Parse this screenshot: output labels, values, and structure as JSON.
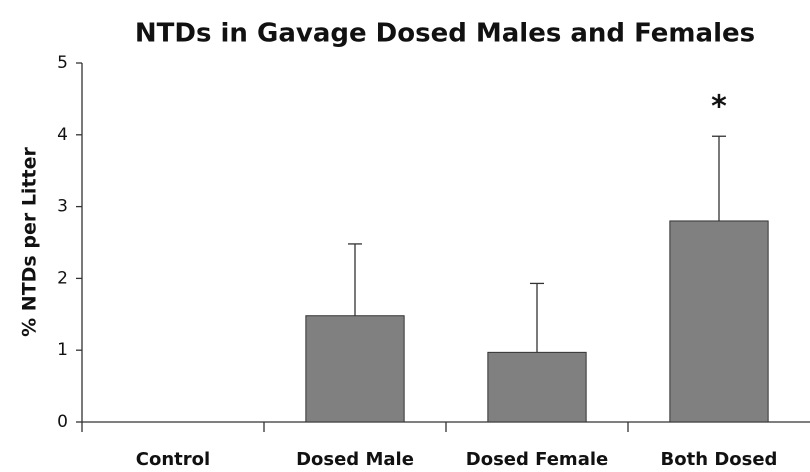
{
  "chart_data": {
    "type": "bar",
    "title": "NTDs in Gavage Dosed Males and Females",
    "ylabel": "% NTDs per Litter",
    "categories": [
      "Control",
      "Dosed Male",
      "Dosed Female",
      "Both Dosed"
    ],
    "values": [
      0,
      1.48,
      0.97,
      2.8
    ],
    "errors": [
      null,
      1.0,
      0.96,
      1.18
    ],
    "color": "#808080",
    "ylim": [
      0,
      5
    ],
    "yticks": [
      0,
      1,
      2,
      3,
      4,
      5
    ],
    "grid": false,
    "annotations": [
      {
        "text": "*",
        "category": "Both Dosed"
      }
    ]
  }
}
